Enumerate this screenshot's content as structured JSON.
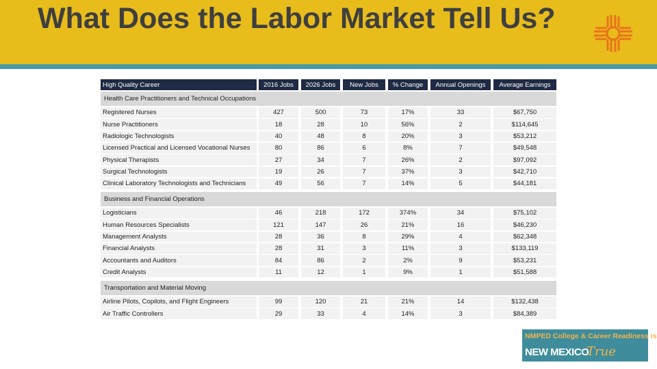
{
  "header": {
    "title": "What Does the Labor Market Tell Us?"
  },
  "table": {
    "columns": [
      "High Quality Career",
      "2016 Jobs",
      "2026 Jobs",
      "New Jobs",
      "% Change",
      "Annual Openings",
      "Average Earnings"
    ],
    "sections": [
      {
        "name": "Health Care Practitioners and Technical Occupations",
        "rows": [
          [
            "Registered Nurses",
            "427",
            "500",
            "73",
            "17%",
            "33",
            "$67,750"
          ],
          [
            "Nurse Practitioners",
            "18",
            "28",
            "10",
            "56%",
            "2",
            "$114,645"
          ],
          [
            "Radiologic Technologists",
            "40",
            "48",
            "8",
            "20%",
            "3",
            "$53,212"
          ],
          [
            "Licensed Practical and Licensed Vocational Nurses",
            "80",
            "86",
            "6",
            "8%",
            "7",
            "$49,548"
          ],
          [
            "Physical Therapists",
            "27",
            "34",
            "7",
            "26%",
            "2",
            "$97,092"
          ],
          [
            "Surgical Technologists",
            "19",
            "26",
            "7",
            "37%",
            "3",
            "$42,710"
          ],
          [
            "Clinical Laboratory Technologists and Technicians",
            "49",
            "56",
            "7",
            "14%",
            "5",
            "$44,181"
          ]
        ]
      },
      {
        "name": "Business and Financial Operations",
        "rows": [
          [
            "Logisticians",
            "46",
            "218",
            "172",
            "374%",
            "34",
            "$75,102"
          ],
          [
            "Human Resources Specialists",
            "121",
            "147",
            "26",
            "21%",
            "16",
            "$46,230"
          ],
          [
            "Management Analysts",
            "28",
            "36",
            "8",
            "29%",
            "4",
            "$62,348"
          ],
          [
            "Financial Analysts",
            "28",
            "31",
            "3",
            "11%",
            "3",
            "$133,119"
          ],
          [
            "Accountants and Auditors",
            "84",
            "86",
            "2",
            "2%",
            "9",
            "$53,231"
          ],
          [
            "Credit Analysts",
            "11",
            "12",
            "1",
            "9%",
            "1",
            "$51,588"
          ]
        ]
      },
      {
        "name": "Transportation and Material Moving",
        "rows": [
          [
            "Airline Pilots, Copilots, and Flight Engineers",
            "99",
            "120",
            "21",
            "21%",
            "14",
            "$132,438"
          ],
          [
            "Air Traffic Controllers",
            "29",
            "33",
            "4",
            "14%",
            "3",
            "$84,389"
          ]
        ]
      }
    ]
  },
  "logo": {
    "tagline": "NMPED College & Career Readiness is",
    "state": "NEW MEXICO",
    "word": "True"
  }
}
